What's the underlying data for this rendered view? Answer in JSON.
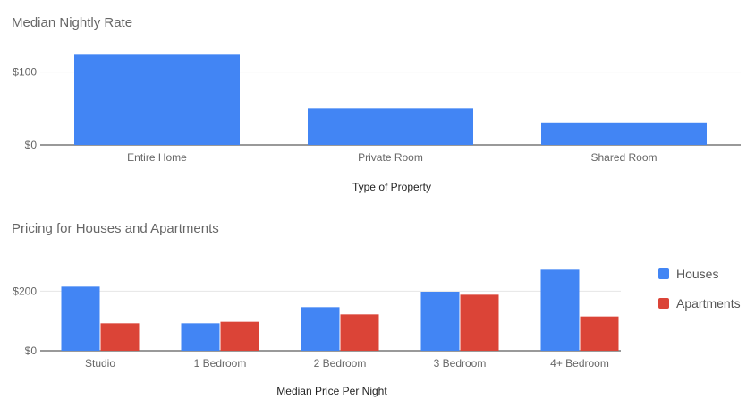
{
  "chart_data": [
    {
      "type": "bar",
      "title": "Median Nightly Rate",
      "xlabel": "Type of Property",
      "ylabel": "",
      "categories": [
        "Entire Home",
        "Private Room",
        "Shared Room"
      ],
      "series": [
        {
          "values": [
            125,
            50,
            31
          ],
          "color": "#4285f4"
        }
      ],
      "ylim": [
        0,
        150
      ],
      "yticks": [
        0,
        100
      ],
      "ytick_labels": [
        "$0",
        "$100"
      ],
      "grid": true,
      "legend": "none"
    },
    {
      "type": "bar",
      "title": "Pricing for Houses and Apartments",
      "xlabel": "Median Price Per Night",
      "ylabel": "",
      "categories": [
        "Studio",
        "1 Bedroom",
        "2 Bedroom",
        "3 Bedroom",
        "4+ Bedroom"
      ],
      "series": [
        {
          "name": "Houses",
          "values": [
            215,
            92,
            146,
            198,
            272
          ],
          "color": "#4285f4"
        },
        {
          "name": "Apartments",
          "values": [
            92,
            97,
            122,
            188,
            115
          ],
          "color": "#db4437"
        }
      ],
      "ylim": [
        0,
        300
      ],
      "yticks": [
        0,
        200
      ],
      "ytick_labels": [
        "$0",
        "$200"
      ],
      "grid": true,
      "legend": "right"
    }
  ]
}
